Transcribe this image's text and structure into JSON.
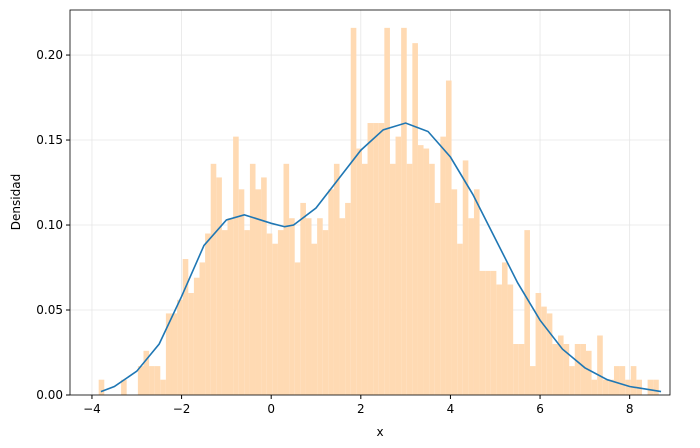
{
  "chart_data": {
    "type": "histogram",
    "xlabel": "x",
    "ylabel": "Densidad",
    "color": "#ffdab3",
    "bins": [
      -3.85,
      -3.725,
      -3.6,
      -3.475,
      -3.35,
      -3.225,
      -3.1,
      -2.975,
      -2.85,
      -2.725,
      -2.6,
      -2.475,
      -2.35,
      -2.225,
      -2.1,
      -1.975,
      -1.85,
      -1.725,
      -1.6,
      -1.475,
      -1.35,
      -1.225,
      -1.1,
      -0.975,
      -0.85,
      -0.725,
      -0.6,
      -0.475,
      -0.35,
      -0.225,
      -0.1,
      0.025,
      0.15,
      0.275,
      0.4,
      0.525,
      0.65,
      0.775,
      0.9,
      1.025,
      1.15,
      1.275,
      1.4,
      1.525,
      1.65,
      1.775,
      1.9,
      2.025,
      2.15,
      2.275,
      2.4,
      2.525,
      2.65,
      2.775,
      2.9,
      3.025,
      3.15,
      3.275,
      3.4,
      3.525,
      3.65,
      3.775,
      3.9,
      4.025,
      4.15,
      4.275,
      4.4,
      4.525,
      4.65,
      4.775,
      4.9,
      5.025,
      5.15,
      5.275,
      5.4,
      5.525,
      5.65,
      5.775,
      5.9,
      6.025,
      6.15,
      6.275,
      6.4,
      6.525,
      6.65,
      6.775,
      6.9,
      7.025,
      7.15,
      7.275,
      7.4,
      7.525,
      7.65,
      7.775,
      7.9,
      8.025,
      8.15,
      8.275,
      8.4,
      8.525,
      8.65
    ],
    "values": [
      0.009,
      0,
      0,
      0,
      0.009,
      0,
      0,
      0.017,
      0.026,
      0.017,
      0.017,
      0.009,
      0.048,
      0.048,
      0.056,
      0.08,
      0.06,
      0.069,
      0.078,
      0.095,
      0.136,
      0.128,
      0.097,
      0.104,
      0.152,
      0.121,
      0.097,
      0.136,
      0.121,
      0.128,
      0.095,
      0.089,
      0.097,
      0.136,
      0.104,
      0.078,
      0.113,
      0.104,
      0.089,
      0.104,
      0.097,
      0.121,
      0.136,
      0.104,
      0.113,
      0.216,
      0.145,
      0.136,
      0.16,
      0.16,
      0.16,
      0.216,
      0.136,
      0.152,
      0.216,
      0.136,
      0.207,
      0.147,
      0.145,
      0.136,
      0.113,
      0.152,
      0.185,
      0.121,
      0.089,
      0.138,
      0.104,
      0.121,
      0.073,
      0.073,
      0.073,
      0.065,
      0.078,
      0.065,
      0.03,
      0.03,
      0.097,
      0.017,
      0.06,
      0.052,
      0.048,
      0.03,
      0.035,
      0.03,
      0.017,
      0.03,
      0.03,
      0.026,
      0.009,
      0.035,
      0.009,
      0.009,
      0.017,
      0.017,
      0.009,
      0.017,
      0.009,
      0,
      0.009,
      0.009
    ],
    "line": {
      "color": "#1f77b4",
      "x": [
        -3.8,
        -3.5,
        -3,
        -2.5,
        -2,
        -1.5,
        -1,
        -0.6,
        0,
        0.3,
        0.5,
        1,
        1.5,
        2,
        2.5,
        3,
        3.5,
        4,
        4.5,
        5,
        5.5,
        6,
        6.5,
        7,
        7.5,
        8,
        8.7
      ],
      "values": [
        0.002,
        0.005,
        0.014,
        0.03,
        0.058,
        0.088,
        0.103,
        0.106,
        0.101,
        0.099,
        0.1,
        0.11,
        0.127,
        0.144,
        0.156,
        0.16,
        0.155,
        0.14,
        0.118,
        0.092,
        0.066,
        0.044,
        0.027,
        0.016,
        0.009,
        0.005,
        0.002
      ]
    },
    "xlim": [
      -4.49,
      8.9
    ],
    "ylim": [
      0,
      0.2265
    ],
    "xticks": [
      {
        "value": -4,
        "label": "−4"
      },
      {
        "value": -2,
        "label": "−2"
      },
      0,
      2,
      4,
      6,
      8
    ],
    "yticks": [
      {
        "value": 0,
        "label": "0.00"
      },
      {
        "value": 0.05,
        "label": "0.05"
      },
      {
        "value": 0.1,
        "label": "0.10"
      },
      {
        "value": 0.15,
        "label": "0.15"
      },
      {
        "value": 0.2,
        "label": "0.20"
      }
    ],
    "grid": true
  }
}
